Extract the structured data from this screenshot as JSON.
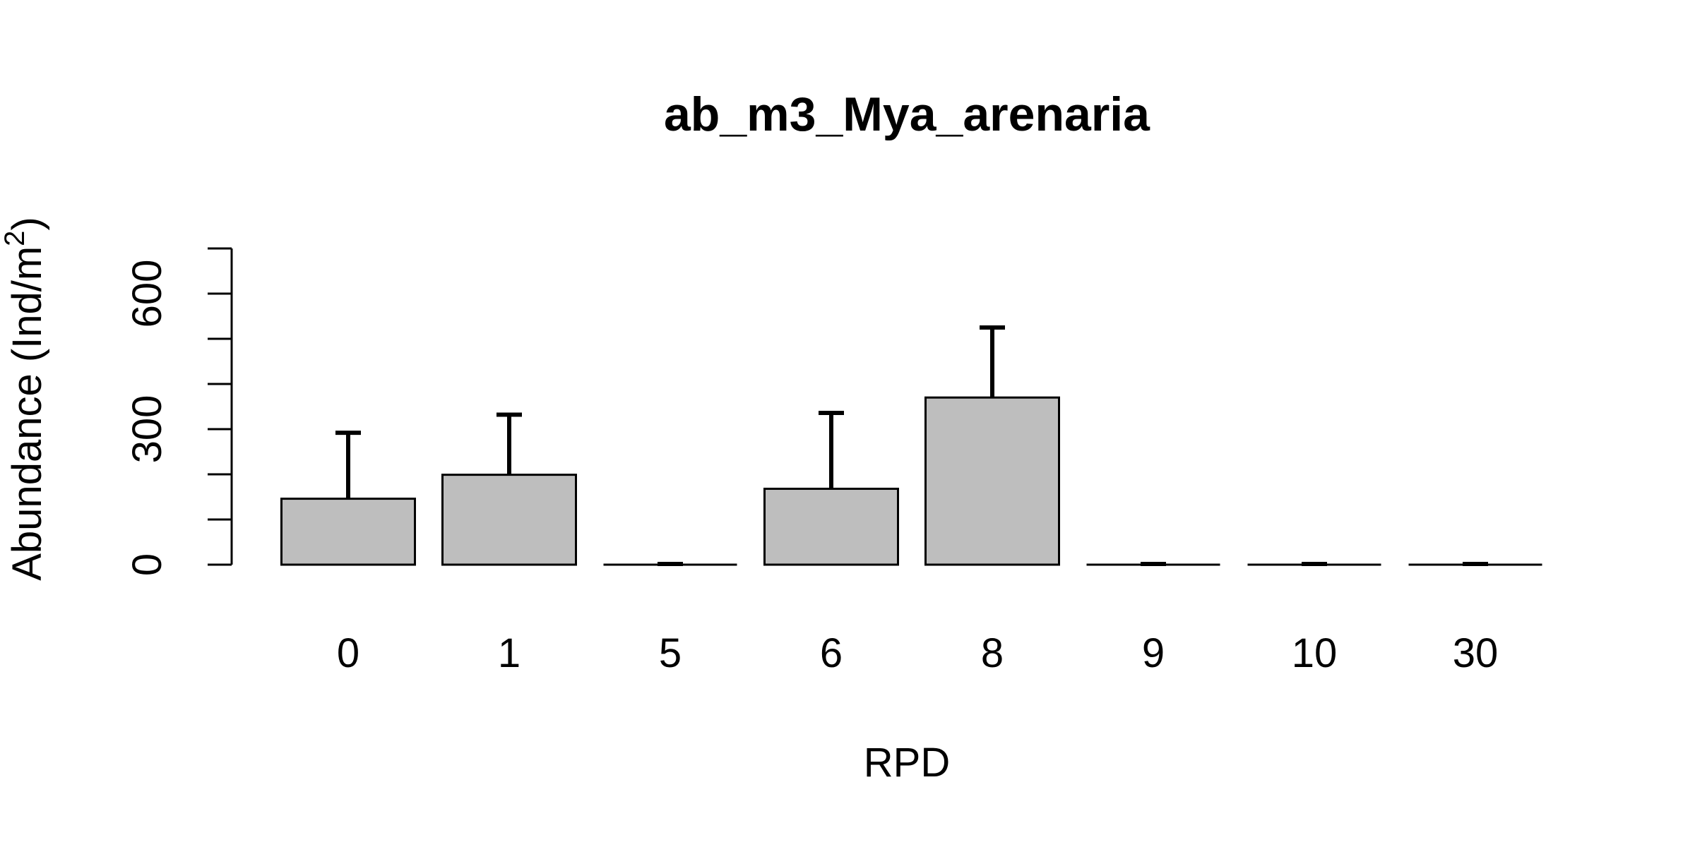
{
  "chart_data": {
    "type": "bar",
    "title": "ab_m3_Mya_arenaria",
    "xlabel": "RPD",
    "ylabel_main": "Abundance (Ind/m",
    "ylabel_sup": "2",
    "ylabel_close": ")",
    "categories": [
      "0",
      "1",
      "5",
      "6",
      "8",
      "9",
      "10",
      "30"
    ],
    "values": [
      146,
      199,
      0,
      168,
      370,
      0,
      0,
      0
    ],
    "error_upper": [
      292,
      332,
      0,
      336,
      525,
      0,
      0,
      0
    ],
    "ylim": [
      0,
      700
    ],
    "ytick_values": [
      0,
      100,
      200,
      300,
      400,
      500,
      600,
      700
    ],
    "ytick_labels": [
      {
        "value": 0,
        "label": "0"
      },
      {
        "value": 300,
        "label": "300"
      },
      {
        "value": 600,
        "label": "600"
      }
    ],
    "bar_color": "#bebebe",
    "grid": false,
    "legend": "none"
  }
}
